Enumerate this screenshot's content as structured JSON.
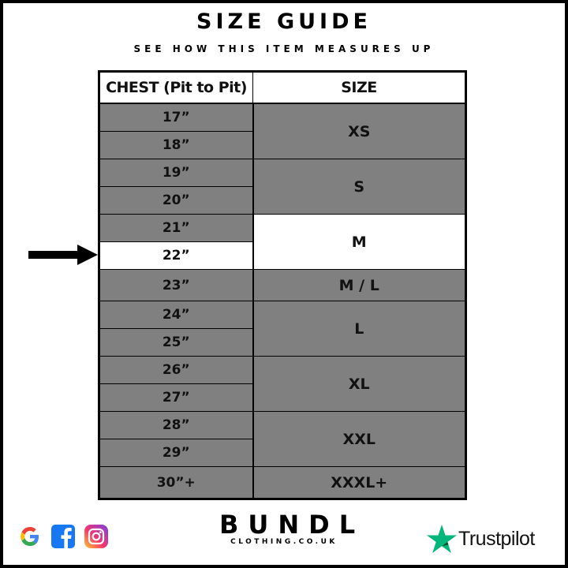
{
  "header": {
    "title": "SIZE GUIDE",
    "subtitle": "SEE HOW THIS ITEM MEASURES UP"
  },
  "table": {
    "columns": [
      "CHEST (Pit to Pit)",
      "SIZE"
    ],
    "chest": [
      "17”",
      "18”",
      "19”",
      "20”",
      "21”",
      "22”",
      "23”",
      "24”",
      "25”",
      "26”",
      "27”",
      "28”",
      "29”",
      "30”+"
    ],
    "sizes": [
      "XS",
      "S",
      "M",
      "M / L",
      "L",
      "XL",
      "XXL",
      "XXXL+"
    ],
    "highlighted_chest": "22”",
    "highlighted_size": "M"
  },
  "colors": {
    "cell_gray": "#808080",
    "highlight": "#ffffff",
    "trustpilot_green": "#00b67a"
  },
  "footer": {
    "social_icons": [
      "google-icon",
      "facebook-icon",
      "instagram-icon"
    ],
    "brand": "BUNDL",
    "brand_sub": "CLOTHING.CO.UK",
    "trustpilot": "Trustpilot"
  }
}
